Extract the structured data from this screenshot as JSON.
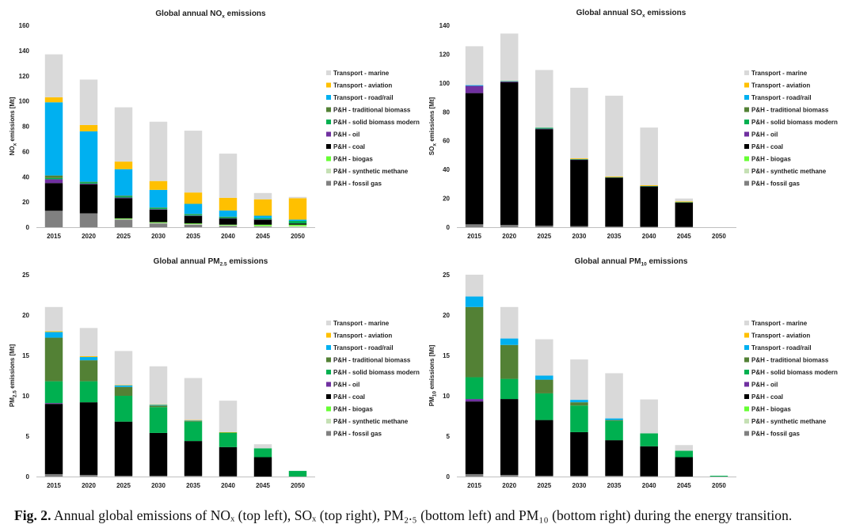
{
  "caption": {
    "label": "Fig. 2.",
    "text": "Annual global emissions of NOₓ (top left), SOₓ (top right), PM₂.₅ (bottom left) and PM₁₀ (bottom right) during the energy transition."
  },
  "legend": [
    {
      "name": "Transport - marine",
      "color": "#d9d9d9"
    },
    {
      "name": "Transport - aviation",
      "color": "#ffc000"
    },
    {
      "name": "Transport - road/rail",
      "color": "#00b0f0"
    },
    {
      "name": "P&H - traditional biomass",
      "color": "#538135"
    },
    {
      "name": "P&H - solid biomass modern",
      "color": "#00b050"
    },
    {
      "name": "P&H - oil",
      "color": "#7030a0"
    },
    {
      "name": "P&H - coal",
      "color": "#000000"
    },
    {
      "name": "P&H - biogas",
      "color": "#66ff33"
    },
    {
      "name": "P&H - synthetic methane",
      "color": "#c5e0b4"
    },
    {
      "name": "P&H - fossil gas",
      "color": "#808080"
    }
  ],
  "chart_data": [
    {
      "type": "bar",
      "stacked": true,
      "title": {
        "main": "Global annual NO",
        "sub": "x",
        "tail": " emissions"
      },
      "ylabel": {
        "main": "NO",
        "sub": "x",
        "tail": " emissions [Mt]"
      },
      "ylim": [
        0,
        160
      ],
      "yticks": [
        0,
        20,
        40,
        60,
        80,
        100,
        120,
        140,
        160
      ],
      "legend_position": "right",
      "categories": [
        "2015",
        "2020",
        "2025",
        "2030",
        "2035",
        "2040",
        "2045",
        "2050"
      ],
      "series": [
        {
          "name": "P&H - fossil gas",
          "values": [
            13,
            11,
            6,
            3,
            2,
            1,
            0.5,
            0
          ]
        },
        {
          "name": "P&H - synthetic methane",
          "values": [
            0,
            0,
            0.5,
            0.5,
            0.5,
            0.5,
            0.5,
            1
          ]
        },
        {
          "name": "P&H - biogas",
          "values": [
            0,
            0,
            0.5,
            0.5,
            0.5,
            0.5,
            1,
            1
          ]
        },
        {
          "name": "P&H - coal",
          "values": [
            22,
            23,
            16,
            10,
            6,
            5,
            4,
            1
          ]
        },
        {
          "name": "P&H - oil",
          "values": [
            3,
            0.5,
            0.5,
            0.3,
            0.2,
            0.1,
            0.1,
            0
          ]
        },
        {
          "name": "P&H - solid biomass modern",
          "values": [
            1,
            1,
            1,
            1,
            1,
            1,
            1,
            2
          ]
        },
        {
          "name": "P&H - traditional biomass",
          "values": [
            2,
            0.5,
            0.5,
            0.3,
            0.3,
            0.2,
            0,
            0
          ]
        },
        {
          "name": "Transport - road/rail",
          "values": [
            58,
            40,
            21,
            14,
            8,
            5,
            2,
            1
          ]
        },
        {
          "name": "Transport - aviation",
          "values": [
            4,
            5,
            6,
            7,
            9,
            10,
            13,
            17
          ]
        },
        {
          "name": "Transport - marine",
          "values": [
            34,
            36,
            43,
            47,
            49,
            35,
            5,
            1
          ]
        }
      ]
    },
    {
      "type": "bar",
      "stacked": true,
      "title": {
        "main": "Global annual SO",
        "sub": "x",
        "tail": " emissions"
      },
      "ylabel": {
        "main": "SO",
        "sub": "x",
        "tail": " emissions [Mt]"
      },
      "ylim": [
        0,
        140
      ],
      "yticks": [
        0,
        20,
        40,
        60,
        80,
        100,
        120,
        140
      ],
      "legend_position": "right",
      "categories": [
        "2015",
        "2020",
        "2025",
        "2030",
        "2035",
        "2040",
        "2045",
        "2050"
      ],
      "series": [
        {
          "name": "P&H - fossil gas",
          "values": [
            2,
            1.5,
            1,
            0.7,
            0.4,
            0.3,
            0.2,
            0
          ]
        },
        {
          "name": "P&H - synthetic methane",
          "values": [
            0,
            0,
            0,
            0,
            0,
            0,
            0,
            0
          ]
        },
        {
          "name": "P&H - biogas",
          "values": [
            0,
            0,
            0,
            0,
            0,
            0,
            0,
            0
          ]
        },
        {
          "name": "P&H - coal",
          "values": [
            91,
            99,
            67,
            46,
            34,
            28,
            17,
            0
          ]
        },
        {
          "name": "P&H - oil",
          "values": [
            5,
            0.5,
            0.3,
            0.2,
            0.1,
            0.1,
            0.1,
            0
          ]
        },
        {
          "name": "P&H - solid biomass modern",
          "values": [
            0,
            0.3,
            0.7,
            0.3,
            0.2,
            0.2,
            0.1,
            0
          ]
        },
        {
          "name": "P&H - traditional biomass",
          "values": [
            0,
            0,
            0,
            0,
            0,
            0,
            0,
            0
          ]
        },
        {
          "name": "Transport - road/rail",
          "values": [
            0.5,
            0,
            0,
            0,
            0,
            0,
            0,
            0
          ]
        },
        {
          "name": "Transport - aviation",
          "values": [
            0,
            0,
            0,
            0.5,
            0.5,
            0.5,
            0.5,
            0
          ]
        },
        {
          "name": "Transport - marine",
          "values": [
            27,
            33,
            40,
            49,
            56,
            40,
            2,
            0
          ]
        }
      ]
    },
    {
      "type": "bar",
      "stacked": true,
      "title": {
        "main": "Global annual PM",
        "sub": "2.5",
        "tail": " emissions"
      },
      "ylabel": {
        "main": "PM",
        "sub": "2.5",
        "tail": " emissions [Mt]"
      },
      "ylim": [
        0,
        25
      ],
      "yticks": [
        0,
        5,
        10,
        15,
        20,
        25
      ],
      "legend_position": "right",
      "categories": [
        "2015",
        "2020",
        "2025",
        "2030",
        "2035",
        "2040",
        "2045",
        "2050"
      ],
      "series": [
        {
          "name": "P&H - fossil gas",
          "values": [
            0.3,
            0.2,
            0.1,
            0.1,
            0.1,
            0.05,
            0,
            0
          ]
        },
        {
          "name": "P&H - synthetic methane",
          "values": [
            0,
            0,
            0,
            0,
            0,
            0,
            0,
            0
          ]
        },
        {
          "name": "P&H - biogas",
          "values": [
            0,
            0,
            0,
            0,
            0,
            0,
            0,
            0
          ]
        },
        {
          "name": "P&H - coal",
          "values": [
            8.7,
            9,
            6.7,
            5.3,
            4.3,
            3.6,
            2.4,
            0
          ]
        },
        {
          "name": "P&H - oil",
          "values": [
            0.1,
            0,
            0,
            0,
            0,
            0,
            0,
            0
          ]
        },
        {
          "name": "P&H - solid biomass modern",
          "values": [
            2.7,
            2.6,
            3.2,
            3.2,
            2.4,
            1.8,
            1.1,
            0.7
          ]
        },
        {
          "name": "P&H - traditional biomass",
          "values": [
            5.4,
            2.6,
            1.1,
            0.2,
            0.1,
            0,
            0,
            0
          ]
        },
        {
          "name": "Transport - road/rail",
          "values": [
            0.7,
            0.4,
            0.2,
            0.1,
            0.05,
            0,
            0,
            0
          ]
        },
        {
          "name": "Transport - aviation",
          "values": [
            0.1,
            0.1,
            0.05,
            0.05,
            0.05,
            0.05,
            0,
            0
          ]
        },
        {
          "name": "Transport - marine",
          "values": [
            3,
            3.5,
            4.2,
            4.7,
            5.2,
            3.9,
            0.5,
            0
          ]
        }
      ]
    },
    {
      "type": "bar",
      "stacked": true,
      "title": {
        "main": "Global annual PM",
        "sub": "10",
        "tail": " emissions"
      },
      "ylabel": {
        "main": "PM",
        "sub": "10",
        "tail": " emissions [Mt]"
      },
      "ylim": [
        0,
        25
      ],
      "yticks": [
        0,
        5,
        10,
        15,
        20,
        25
      ],
      "legend_position": "right",
      "categories": [
        "2015",
        "2020",
        "2025",
        "2030",
        "2035",
        "2040",
        "2045",
        "2050"
      ],
      "series": [
        {
          "name": "P&H - fossil gas",
          "values": [
            0.3,
            0.2,
            0.1,
            0.1,
            0.1,
            0.05,
            0,
            0
          ]
        },
        {
          "name": "P&H - synthetic methane",
          "values": [
            0,
            0,
            0,
            0,
            0,
            0,
            0,
            0
          ]
        },
        {
          "name": "P&H - biogas",
          "values": [
            0,
            0,
            0,
            0,
            0,
            0,
            0,
            0
          ]
        },
        {
          "name": "P&H - coal",
          "values": [
            9,
            9.4,
            6.9,
            5.4,
            4.4,
            3.7,
            2.4,
            0
          ]
        },
        {
          "name": "P&H - oil",
          "values": [
            0.3,
            0,
            0,
            0,
            0,
            0,
            0,
            0
          ]
        },
        {
          "name": "P&H - solid biomass modern",
          "values": [
            2.7,
            2.5,
            3.3,
            3.3,
            2.4,
            1.6,
            0.8,
            0.1
          ]
        },
        {
          "name": "P&H - traditional biomass",
          "values": [
            8.7,
            4.2,
            1.7,
            0.4,
            0.1,
            0,
            0,
            0
          ]
        },
        {
          "name": "Transport - road/rail",
          "values": [
            1.3,
            0.8,
            0.5,
            0.3,
            0.2,
            0,
            0,
            0
          ]
        },
        {
          "name": "Transport - aviation",
          "values": [
            0,
            0,
            0,
            0,
            0,
            0,
            0,
            0
          ]
        },
        {
          "name": "Transport - marine",
          "values": [
            2.7,
            3.9,
            4.5,
            5,
            5.6,
            4.2,
            0.7,
            0
          ]
        }
      ]
    }
  ]
}
